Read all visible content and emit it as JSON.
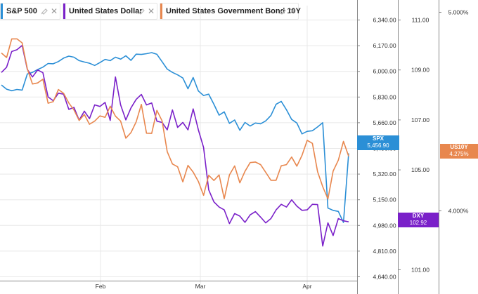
{
  "legend": [
    {
      "name": "S&P 500",
      "color": "#2b8fd6",
      "icon": "pin-icon"
    },
    {
      "name": "United States Dollar",
      "color": "#7a20c9",
      "icon": "pin-icon"
    },
    {
      "name": "United States Government Bond 10Y",
      "color": "#e8874e",
      "icon": "pin-icon"
    }
  ],
  "colors": {
    "spx": "#2b8fd6",
    "dxy": "#7a20c9",
    "us10y": "#e8874e",
    "grid": "#e8e8e8",
    "axis": "#888888"
  },
  "tags": {
    "spx": {
      "symbol": "SPX",
      "value": "5,456.90"
    },
    "dxy": {
      "symbol": "DXY",
      "value": "102.92"
    },
    "us10y": {
      "symbol": "US10Y",
      "value": "4.275%"
    }
  },
  "chart_data": {
    "type": "line",
    "x_tick_labels": [
      "Feb",
      "Mar",
      "Apr"
    ],
    "axes": {
      "spx": {
        "ticks": [
          "6,340.00",
          "6,170.00",
          "6,000.00",
          "5,830.00",
          "5,660.00",
          "5,490.00",
          "5,320.00",
          "5,150.00",
          "4,980.00",
          "4,810.00",
          "4,640.00"
        ],
        "ylim": [
          4640,
          6340
        ]
      },
      "dxy": {
        "ticks": [
          "111.00",
          "109.00",
          "107.00",
          "105.00",
          "103.00",
          "101.00"
        ],
        "ylim": [
          101,
          111
        ]
      },
      "us10y": {
        "ticks": [
          "5.000%",
          "4.000%"
        ],
        "ylim": [
          3.2,
          5.0
        ]
      }
    },
    "series": [
      {
        "name": "S&P 500",
        "axis": "spx",
        "values": [
          5910,
          5882,
          5872,
          5880,
          5876,
          5983,
          5993,
          6012,
          6028,
          6052,
          6050,
          6065,
          6088,
          6101,
          6094,
          6071,
          6062,
          6054,
          6039,
          6058,
          6079,
          6071,
          6094,
          6081,
          6103,
          6073,
          6114,
          6112,
          6117,
          6124,
          6113,
          6064,
          6015,
          5993,
          5977,
          5956,
          5885,
          5959,
          5870,
          5840,
          5849,
          5782,
          5710,
          5732,
          5656,
          5678,
          5610,
          5662,
          5638,
          5658,
          5653,
          5672,
          5708,
          5782,
          5801,
          5746,
          5682,
          5658,
          5586,
          5603,
          5607,
          5632,
          5660,
          5095,
          5080,
          5073,
          5000,
          5456.9
        ]
      },
      {
        "name": "United States Dollar",
        "axis": "dxy",
        "values": [
          108.9,
          109.11,
          109.74,
          109.81,
          109.98,
          109.02,
          108.72,
          109.0,
          108.89,
          107.92,
          107.77,
          108.07,
          108.03,
          107.42,
          107.5,
          106.99,
          107.35,
          107.05,
          107.6,
          107.54,
          107.7,
          106.98,
          108.72,
          107.6,
          107.0,
          107.48,
          107.82,
          108.02,
          107.6,
          107.68,
          106.95,
          106.9,
          106.6,
          107.4,
          106.7,
          106.9,
          106.6,
          107.44,
          106.6,
          105.9,
          104.2,
          103.72,
          103.51,
          103.4,
          102.85,
          103.25,
          103.15,
          102.9,
          103.2,
          103.33,
          103.11,
          102.88,
          103.05,
          103.4,
          103.62,
          103.51,
          103.8,
          103.55,
          103.38,
          103.4,
          103.62,
          103.61,
          101.95,
          102.88,
          102.37,
          103.05,
          102.96,
          102.92
        ]
      },
      {
        "name": "United States Government Bond 10Y",
        "axis": "us10y",
        "values": [
          4.795,
          4.772,
          4.866,
          4.866,
          4.846,
          4.715,
          4.639,
          4.644,
          4.663,
          4.542,
          4.55,
          4.611,
          4.592,
          4.543,
          4.508,
          4.455,
          4.485,
          4.436,
          4.452,
          4.478,
          4.471,
          4.527,
          4.477,
          4.452,
          4.366,
          4.394,
          4.448,
          4.536,
          4.391,
          4.39,
          4.506,
          4.453,
          4.298,
          4.236,
          4.222,
          4.146,
          4.229,
          4.195,
          4.148,
          4.078,
          4.179,
          4.153,
          4.181,
          4.061,
          4.181,
          4.226,
          4.141,
          4.199,
          4.243,
          4.246,
          4.233,
          4.194,
          4.154,
          4.154,
          4.227,
          4.233,
          4.271,
          4.225,
          4.279,
          4.355,
          4.34,
          4.197,
          4.122,
          4.06,
          4.2,
          4.255,
          4.35,
          4.275
        ]
      }
    ]
  }
}
